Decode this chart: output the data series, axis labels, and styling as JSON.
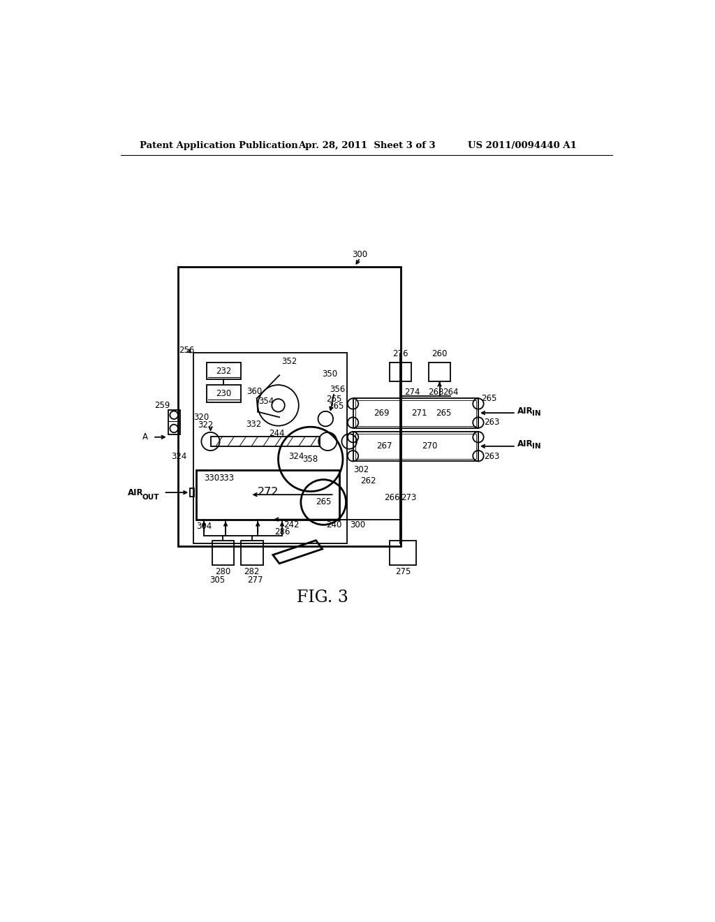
{
  "bg_color": "#ffffff",
  "line_color": "#000000",
  "header_left": "Patent Application Publication",
  "header_mid": "Apr. 28, 2011  Sheet 3 of 3",
  "header_right": "US 2011/0094440 A1",
  "fig_label": "FIG. 3"
}
